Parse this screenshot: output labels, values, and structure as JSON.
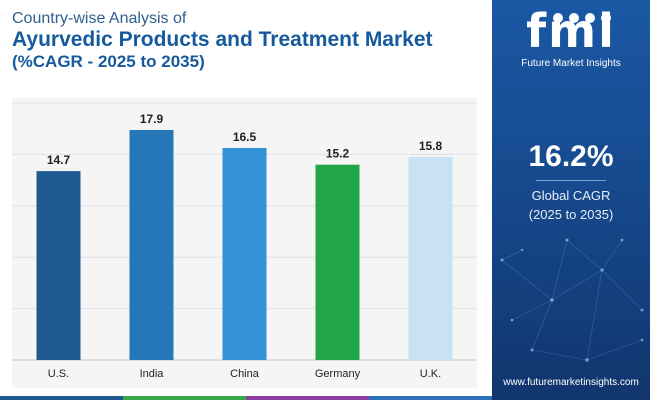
{
  "header": {
    "line1": "Country-wise Analysis of",
    "line2": "Ayurvedic Products and Treatment Market",
    "line3": "(%CAGR - 2025 to 2035)"
  },
  "chart_data": {
    "type": "bar",
    "title": "Country-wise Analysis of Ayurvedic Products and Treatment Market (%CAGR - 2025 to 2035)",
    "categories": [
      "U.S.",
      "India",
      "China",
      "Germany",
      "U.K."
    ],
    "values": [
      14.7,
      17.9,
      16.5,
      15.2,
      15.8
    ],
    "colors": [
      "#1f5a92",
      "#2577b8",
      "#3391d6",
      "#21a74a",
      "#c8e1f3"
    ],
    "xlabel": "",
    "ylabel": "",
    "ylim": [
      0,
      20
    ],
    "grid": true,
    "legend": "none"
  },
  "sidebar": {
    "logo_text": "fmi",
    "logo_subtitle": "Future Market Insights",
    "kpi_value": "16.2%",
    "kpi_label_line1": "Global CAGR",
    "kpi_label_line2": "(2025 to 2035)",
    "website": "www.futuremarketinsights.com"
  },
  "footer_colors": [
    "#1f5a92",
    "#3aa84a",
    "#8a3fa0",
    "#2d6fb8"
  ]
}
